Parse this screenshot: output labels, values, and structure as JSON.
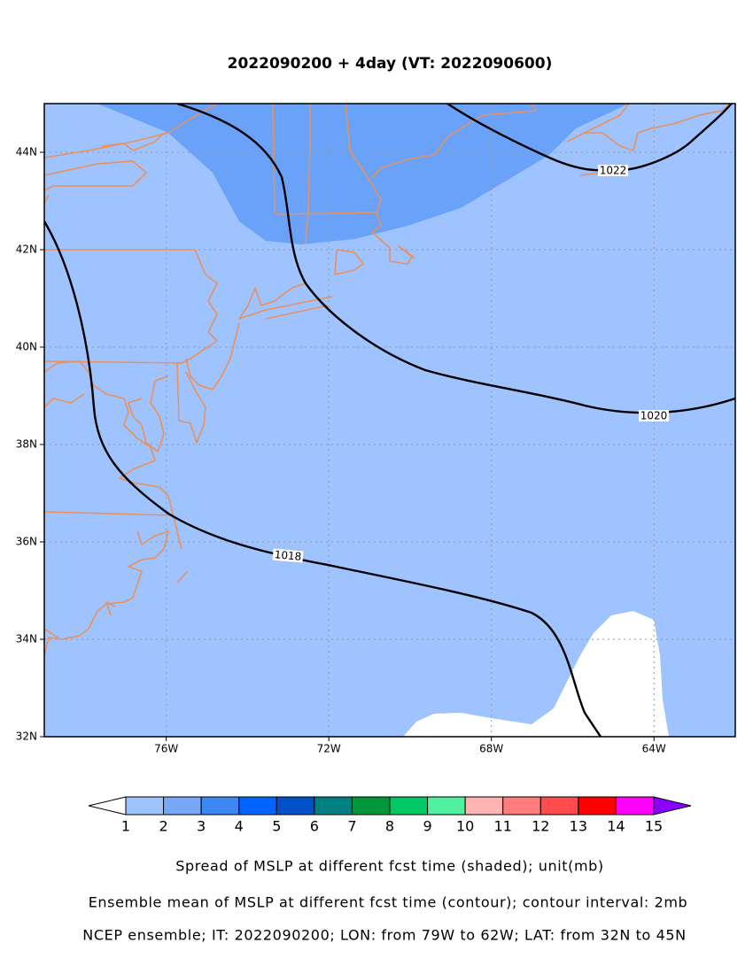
{
  "chart_data": {
    "type": "map",
    "title": "2022090200 + 4day (VT: 2022090600)",
    "xlim": [
      -79,
      -62
    ],
    "ylim": [
      32,
      45
    ],
    "xticks": [
      {
        "value": -76,
        "label": "76W"
      },
      {
        "value": -72,
        "label": "72W"
      },
      {
        "value": -68,
        "label": "68W"
      },
      {
        "value": -64,
        "label": "64W"
      }
    ],
    "yticks": [
      {
        "value": 32,
        "label": "32N"
      },
      {
        "value": 34,
        "label": "34N"
      },
      {
        "value": 36,
        "label": "36N"
      },
      {
        "value": 38,
        "label": "38N"
      },
      {
        "value": 40,
        "label": "40N"
      },
      {
        "value": 42,
        "label": "42N"
      },
      {
        "value": 44,
        "label": "44N"
      }
    ],
    "grid": true,
    "contour_labels": [
      "1022",
      "1020",
      "1018"
    ],
    "colorbar": {
      "levels": [
        1,
        2,
        3,
        4,
        5,
        6,
        7,
        8,
        9,
        10,
        11,
        12,
        13,
        14,
        15
      ],
      "colors": [
        "#ffffff",
        "#9fc3ff",
        "#76a8f7",
        "#3c87f0",
        "#0064ff",
        "#0050c8",
        "#008080",
        "#00963c",
        "#00c864",
        "#50f0a0",
        "#ffb4b4",
        "#ff7d7d",
        "#ff4b4b",
        "#ff0000",
        "#ff00ff",
        "#8c00ff"
      ]
    },
    "captions": [
      "Spread of MSLP at different fcst time (shaded); unit(mb)",
      "Ensemble mean of MSLP at different fcst time (contour); contour interval: 2mb",
      "NCEP ensemble; IT: 2022090200; LON: from 79W to 62W; LAT: from 32N to 45N"
    ]
  }
}
